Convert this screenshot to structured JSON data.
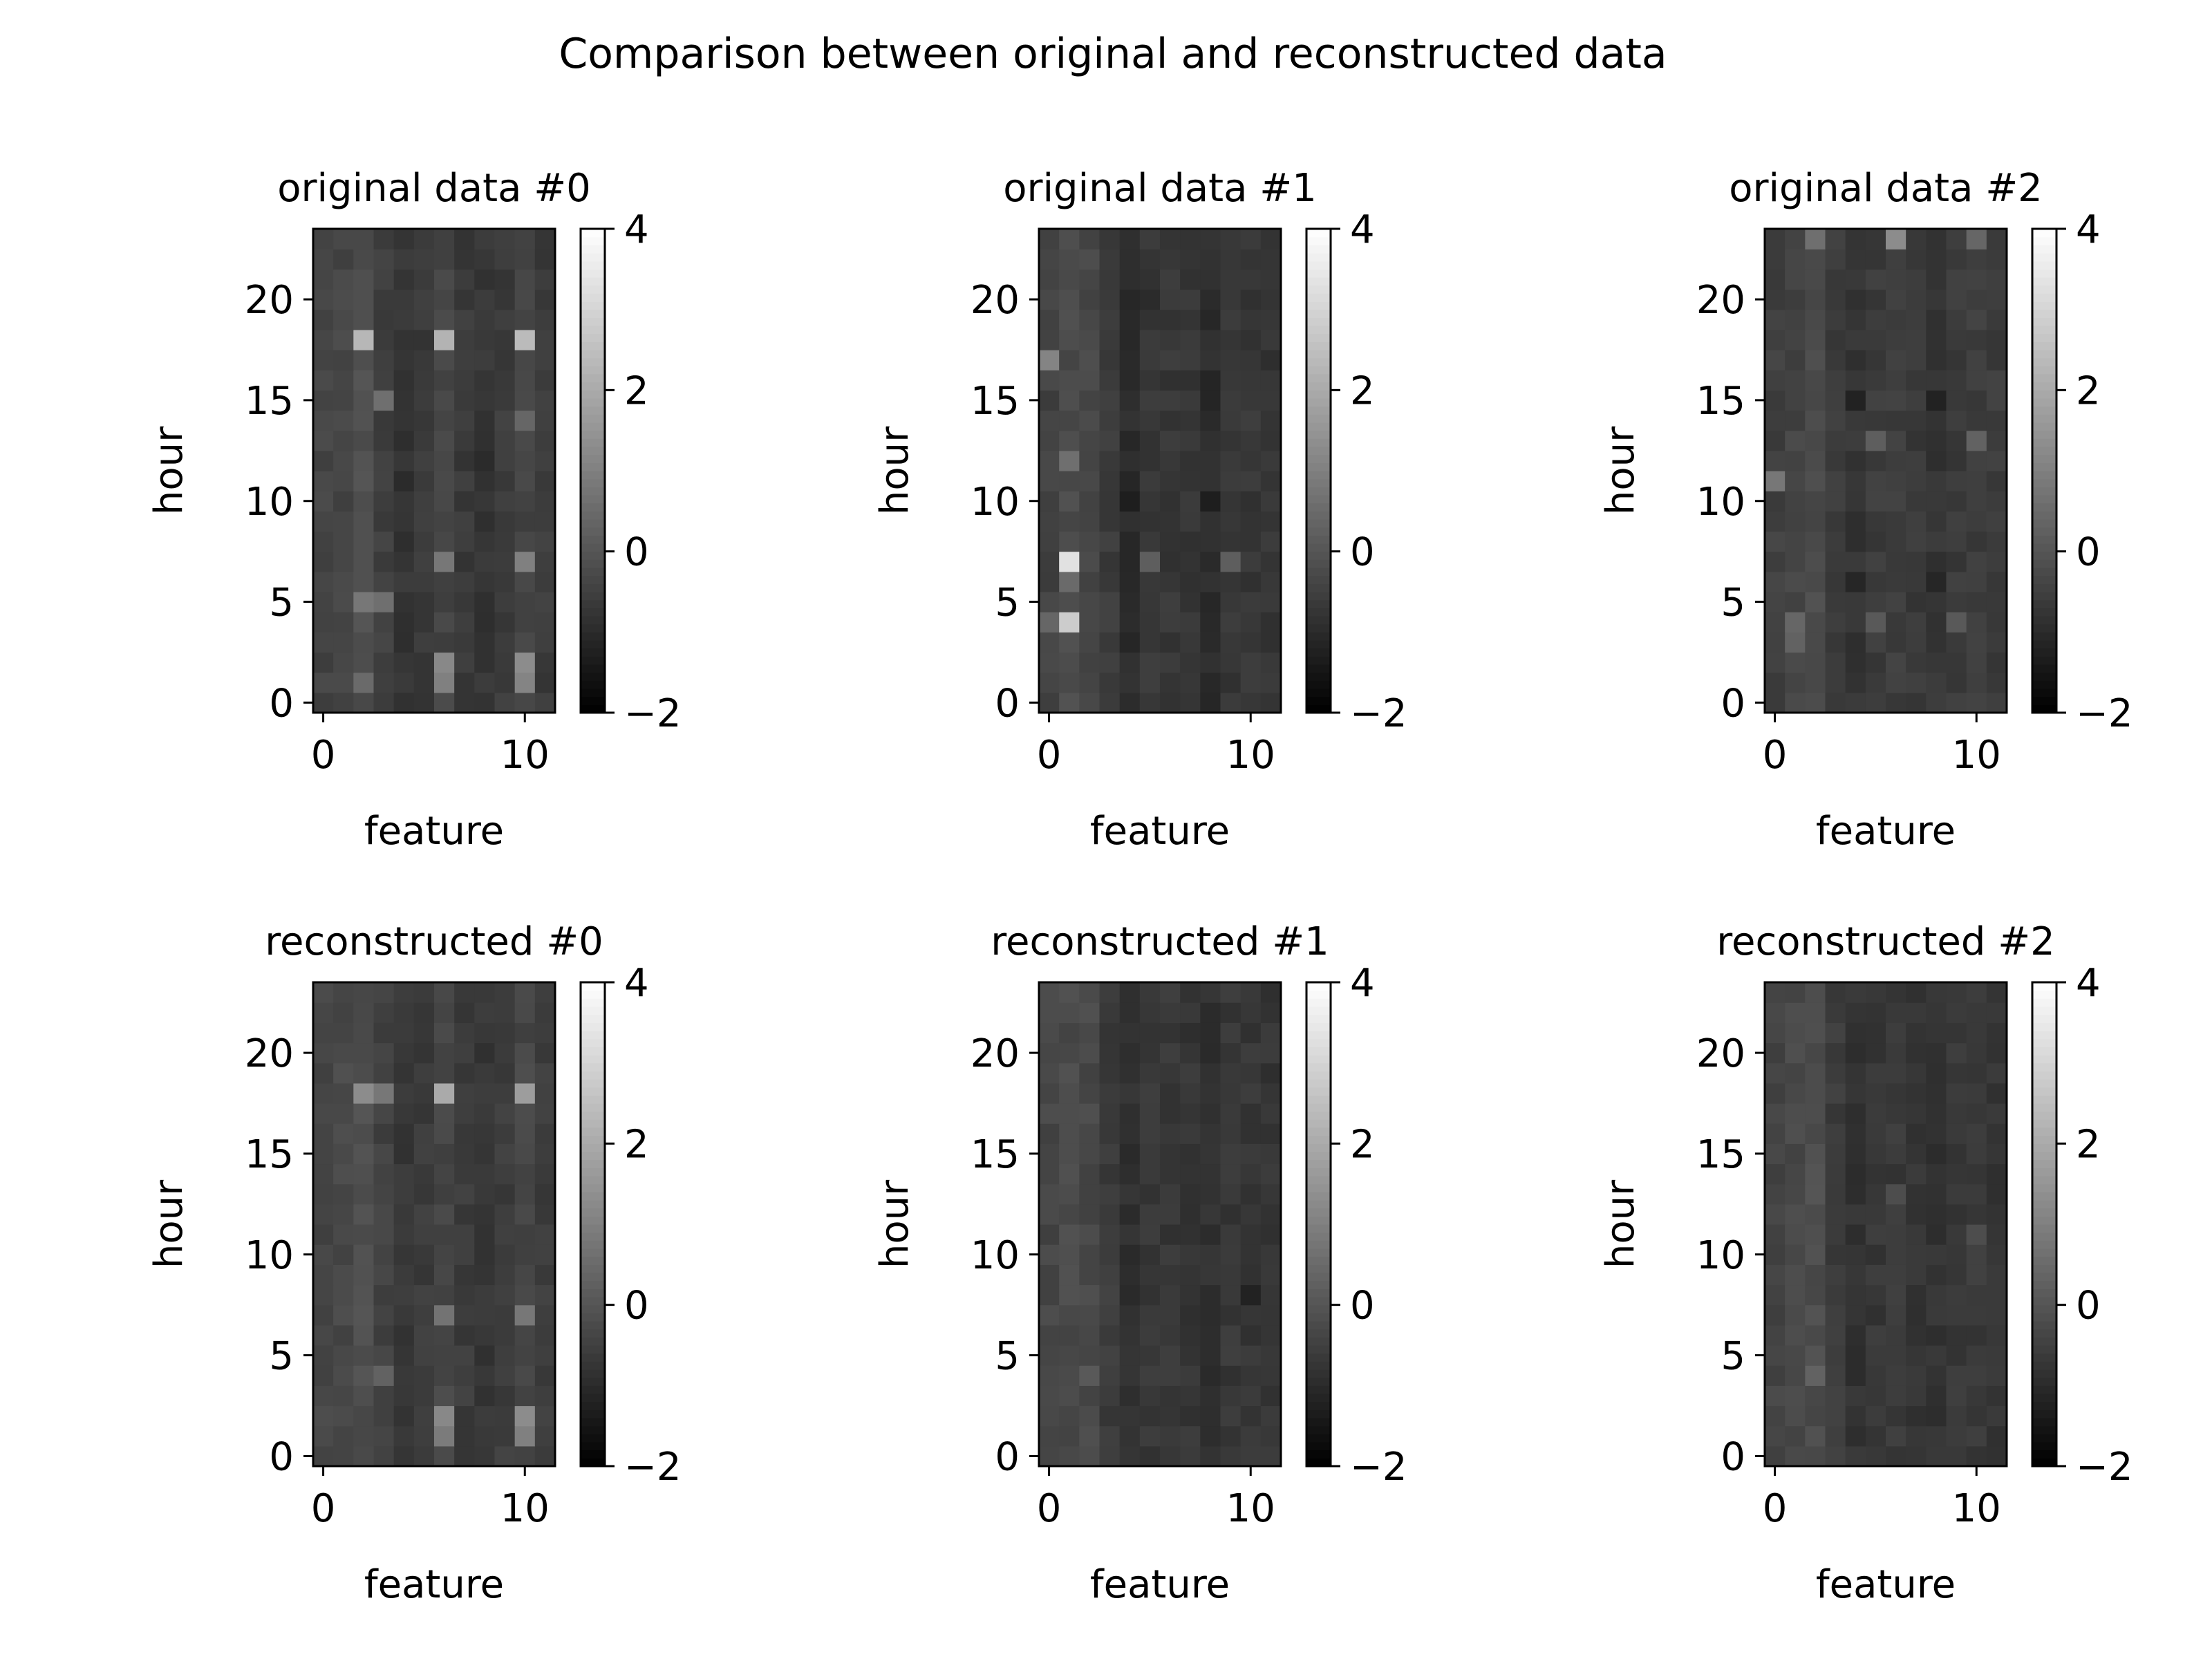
{
  "figure": {
    "title": "Comparison between original and reconstructed data"
  },
  "chart_data": [
    {
      "type": "heatmap",
      "title": "original data #0",
      "xlabel": "feature",
      "ylabel": "hour",
      "x_ticks": [
        0,
        10
      ],
      "y_ticks": [
        0,
        5,
        10,
        15,
        20
      ],
      "xlim": [
        -0.5,
        11.5
      ],
      "ylim": [
        -0.5,
        23.5
      ],
      "colormap": "gray",
      "vmin": -2,
      "vmax": 4,
      "colorbar_ticks": [
        -2,
        0,
        2,
        4
      ],
      "grid": "24 hours x 12 features",
      "base_level": -0.5,
      "column_offsets": [
        0.1,
        0.15,
        0.35,
        0.0,
        -0.25,
        -0.15,
        0.1,
        -0.15,
        -0.25,
        -0.1,
        0.1,
        -0.1
      ],
      "highlights": [
        {
          "hour": 18,
          "feature": 2,
          "value": 2.3
        },
        {
          "hour": 18,
          "feature": 6,
          "value": 2.2
        },
        {
          "hour": 18,
          "feature": 10,
          "value": 2.4
        },
        {
          "hour": 15,
          "feature": 3,
          "value": 0.6
        },
        {
          "hour": 14,
          "feature": 10,
          "value": 0.4
        },
        {
          "hour": 7,
          "feature": 6,
          "value": 0.8
        },
        {
          "hour": 7,
          "feature": 10,
          "value": 1.0
        },
        {
          "hour": 5,
          "feature": 2,
          "value": 0.8
        },
        {
          "hour": 5,
          "feature": 3,
          "value": 0.6
        },
        {
          "hour": 2,
          "feature": 6,
          "value": 1.2
        },
        {
          "hour": 1,
          "feature": 6,
          "value": 1.0
        },
        {
          "hour": 2,
          "feature": 10,
          "value": 1.3
        },
        {
          "hour": 1,
          "feature": 10,
          "value": 1.1
        },
        {
          "hour": 1,
          "feature": 2,
          "value": 0.5
        },
        {
          "hour": 11,
          "feature": 4,
          "value": -1.0
        },
        {
          "hour": 12,
          "feature": 8,
          "value": -1.0
        }
      ]
    },
    {
      "type": "heatmap",
      "title": "original data #1",
      "xlabel": "feature",
      "ylabel": "hour",
      "x_ticks": [
        0,
        10
      ],
      "y_ticks": [
        0,
        5,
        10,
        15,
        20
      ],
      "xlim": [
        -0.5,
        11.5
      ],
      "ylim": [
        -0.5,
        23.5
      ],
      "colormap": "gray",
      "vmin": -2,
      "vmax": 4,
      "colorbar_ticks": [
        -2,
        0,
        2,
        4
      ],
      "grid": "24 hours x 12 features",
      "base_level": -0.5,
      "column_offsets": [
        0.05,
        0.25,
        0.2,
        -0.1,
        -0.45,
        -0.2,
        -0.2,
        -0.25,
        -0.45,
        -0.2,
        -0.2,
        -0.25
      ],
      "highlights": [
        {
          "hour": 17,
          "feature": 0,
          "value": 1.1
        },
        {
          "hour": 12,
          "feature": 1,
          "value": 0.6
        },
        {
          "hour": 7,
          "feature": 1,
          "value": 3.3
        },
        {
          "hour": 4,
          "feature": 1,
          "value": 2.8
        },
        {
          "hour": 6,
          "feature": 1,
          "value": 0.5
        },
        {
          "hour": 4,
          "feature": 0,
          "value": 0.4
        },
        {
          "hour": 7,
          "feature": 5,
          "value": 0.2
        },
        {
          "hour": 7,
          "feature": 9,
          "value": 0.2
        },
        {
          "hour": 10,
          "feature": 4,
          "value": -1.3
        },
        {
          "hour": 10,
          "feature": 8,
          "value": -1.3
        },
        {
          "hour": 20,
          "feature": 5,
          "value": -1.0
        },
        {
          "hour": 20,
          "feature": 8,
          "value": -1.0
        }
      ]
    },
    {
      "type": "heatmap",
      "title": "original data #2",
      "xlabel": "feature",
      "ylabel": "hour",
      "x_ticks": [
        0,
        10
      ],
      "y_ticks": [
        0,
        5,
        10,
        15,
        20
      ],
      "xlim": [
        -0.5,
        11.5
      ],
      "ylim": [
        -0.5,
        23.5
      ],
      "colormap": "gray",
      "vmin": -2,
      "vmax": 4,
      "colorbar_ticks": [
        -2,
        0,
        2,
        4
      ],
      "grid": "24 hours x 12 features",
      "base_level": -0.5,
      "column_offsets": [
        0.0,
        0.1,
        0.25,
        -0.05,
        -0.25,
        -0.1,
        -0.05,
        -0.15,
        -0.25,
        -0.1,
        -0.05,
        -0.1
      ],
      "highlights": [
        {
          "hour": 23,
          "feature": 2,
          "value": 0.6
        },
        {
          "hour": 23,
          "feature": 6,
          "value": 1.3
        },
        {
          "hour": 23,
          "feature": 10,
          "value": 0.4
        },
        {
          "hour": 11,
          "feature": 0,
          "value": 0.8
        },
        {
          "hour": 13,
          "feature": 5,
          "value": 0.2
        },
        {
          "hour": 13,
          "feature": 10,
          "value": 0.3
        },
        {
          "hour": 4,
          "feature": 1,
          "value": 0.4
        },
        {
          "hour": 3,
          "feature": 1,
          "value": 0.3
        },
        {
          "hour": 4,
          "feature": 5,
          "value": 0.1
        },
        {
          "hour": 4,
          "feature": 9,
          "value": 0.1
        },
        {
          "hour": 15,
          "feature": 4,
          "value": -1.2
        },
        {
          "hour": 15,
          "feature": 8,
          "value": -1.2
        },
        {
          "hour": 6,
          "feature": 4,
          "value": -1.1
        },
        {
          "hour": 6,
          "feature": 8,
          "value": -1.1
        }
      ]
    },
    {
      "type": "heatmap",
      "title": "reconstructed #0",
      "xlabel": "feature",
      "ylabel": "hour",
      "x_ticks": [
        0,
        10
      ],
      "y_ticks": [
        0,
        5,
        10,
        15,
        20
      ],
      "xlim": [
        -0.5,
        11.5
      ],
      "ylim": [
        -0.5,
        23.5
      ],
      "colormap": "gray",
      "vmin": -2,
      "vmax": 4,
      "colorbar_ticks": [
        -2,
        0,
        2,
        4
      ],
      "grid": "24 hours x 12 features",
      "base_level": -0.45,
      "column_offsets": [
        0.1,
        0.15,
        0.3,
        0.0,
        -0.25,
        -0.15,
        0.1,
        -0.15,
        -0.25,
        -0.1,
        0.1,
        -0.1
      ],
      "highlights": [
        {
          "hour": 18,
          "feature": 2,
          "value": 1.3
        },
        {
          "hour": 18,
          "feature": 3,
          "value": 0.8
        },
        {
          "hour": 18,
          "feature": 6,
          "value": 2.0
        },
        {
          "hour": 18,
          "feature": 10,
          "value": 1.7
        },
        {
          "hour": 7,
          "feature": 6,
          "value": 0.7
        },
        {
          "hour": 7,
          "feature": 10,
          "value": 0.8
        },
        {
          "hour": 2,
          "feature": 6,
          "value": 1.2
        },
        {
          "hour": 2,
          "feature": 10,
          "value": 1.3
        },
        {
          "hour": 1,
          "feature": 6,
          "value": 0.9
        },
        {
          "hour": 1,
          "feature": 10,
          "value": 1.0
        },
        {
          "hour": 4,
          "feature": 3,
          "value": 0.3
        }
      ]
    },
    {
      "type": "heatmap",
      "title": "reconstructed #1",
      "xlabel": "feature",
      "ylabel": "hour",
      "x_ticks": [
        0,
        10
      ],
      "y_ticks": [
        0,
        5,
        10,
        15,
        20
      ],
      "xlim": [
        -0.5,
        11.5
      ],
      "ylim": [
        -0.5,
        23.5
      ],
      "colormap": "gray",
      "vmin": -2,
      "vmax": 4,
      "colorbar_ticks": [
        -2,
        0,
        2,
        4
      ],
      "grid": "24 hours x 12 features",
      "base_level": -0.5,
      "column_offsets": [
        0.15,
        0.25,
        0.2,
        -0.1,
        -0.35,
        -0.2,
        -0.2,
        -0.25,
        -0.35,
        -0.2,
        -0.2,
        -0.25
      ],
      "highlights": [
        {
          "hour": 4,
          "feature": 2,
          "value": 0.1
        },
        {
          "hour": 8,
          "feature": 10,
          "value": -1.2
        }
      ]
    },
    {
      "type": "heatmap",
      "title": "reconstructed #2",
      "xlabel": "feature",
      "ylabel": "hour",
      "x_ticks": [
        0,
        10
      ],
      "y_ticks": [
        0,
        5,
        10,
        15,
        20
      ],
      "xlim": [
        -0.5,
        11.5
      ],
      "ylim": [
        -0.5,
        23.5
      ],
      "colormap": "gray",
      "vmin": -2,
      "vmax": 4,
      "colorbar_ticks": [
        -2,
        0,
        2,
        4
      ],
      "grid": "24 hours x 12 features",
      "base_level": -0.5,
      "column_offsets": [
        0.1,
        0.2,
        0.3,
        -0.1,
        -0.3,
        -0.2,
        -0.15,
        -0.25,
        -0.3,
        -0.2,
        -0.15,
        -0.25
      ],
      "highlights": [
        {
          "hour": 4,
          "feature": 2,
          "value": 0.3
        },
        {
          "hour": 13,
          "feature": 6,
          "value": -0.2
        },
        {
          "hour": 11,
          "feature": 10,
          "value": -0.2
        },
        {
          "hour": 13,
          "feature": 2,
          "value": 0.0
        }
      ]
    }
  ]
}
